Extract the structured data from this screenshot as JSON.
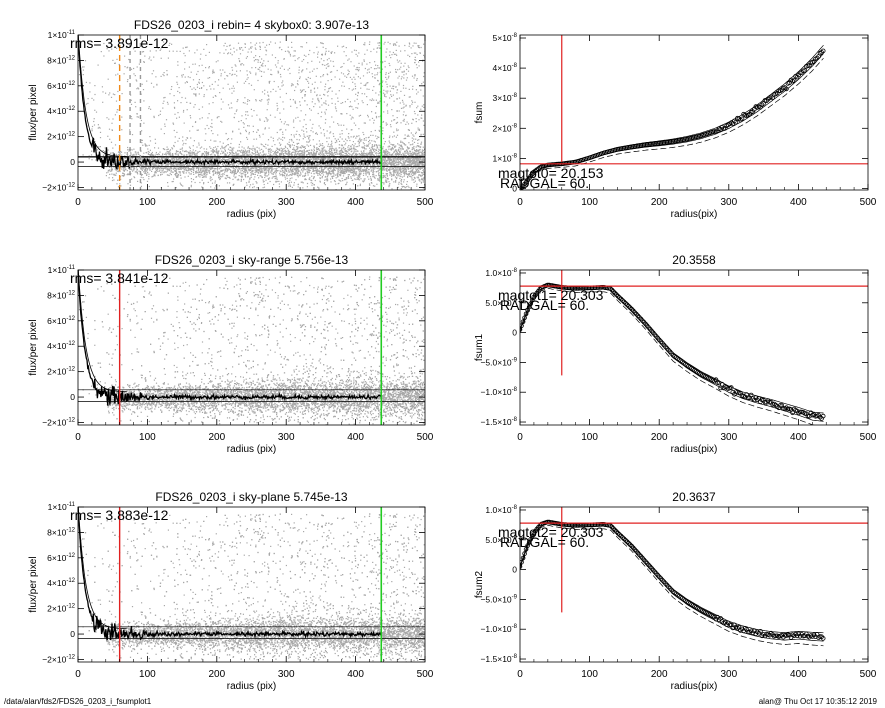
{
  "footer": {
    "path": "/data/alan/fds2/FDS26_0203_i_fsumplot1",
    "user_time": "alan@  Thu Oct 17 10:35:12 2019"
  },
  "colors": {
    "scatter": "#a8a8a8",
    "profile": "#000000",
    "red_line": "#e02020",
    "green_line": "#22cc22",
    "orange_dash": "#f08a1a",
    "gray_dash": "#9a9a9a"
  },
  "chart_data": [
    {
      "id": "p1",
      "type": "scatter",
      "title": "FDS26_0203_i rebin= 4    skybox0:  3.907e-13",
      "xlabel": "radius (pix)",
      "ylabel": "flux/per pixel",
      "xlim": [
        0,
        500
      ],
      "ylim": [
        -2.2e-12,
        1e-11
      ],
      "xticks": [
        "0",
        "100",
        "200",
        "300",
        "400",
        "500"
      ],
      "yticks": [
        {
          "v": 1e-11,
          "label": "1×10",
          "exp": "-11"
        },
        {
          "v": 8e-12,
          "label": "8×10",
          "exp": "-12"
        },
        {
          "v": 6e-12,
          "label": "6×10",
          "exp": "-12"
        },
        {
          "v": 4e-12,
          "label": "4×10",
          "exp": "-12"
        },
        {
          "v": 2e-12,
          "label": "2×10",
          "exp": "-12"
        },
        {
          "v": 0,
          "label": "0",
          "exp": ""
        },
        {
          "v": -2e-12,
          "label": "−2×10",
          "exp": "-12"
        }
      ],
      "annotation": "rms= 3.891e-12",
      "vlines": [
        {
          "x": 437,
          "color": "green",
          "style": "solid"
        },
        {
          "x": 60,
          "color": "orange",
          "style": "dashed"
        },
        {
          "x": 75,
          "color": "gray",
          "style": "dashed"
        },
        {
          "x": 90,
          "color": "gray",
          "style": "dashed"
        }
      ],
      "hlines": [
        3.9e-13,
        4.5e-13,
        -3.5e-13
      ]
    },
    {
      "id": "p2",
      "type": "line",
      "title": "",
      "xlabel": "radius(pix)",
      "ylabel": "fsum",
      "xlim": [
        0,
        500
      ],
      "ylim": [
        -5e-10,
        5.1e-08
      ],
      "xticks": [
        "0",
        "100",
        "200",
        "300",
        "400",
        "500"
      ],
      "yticks": [
        {
          "v": 0,
          "label": "0",
          "exp": ""
        },
        {
          "v": 1e-08,
          "label": "1×10",
          "exp": "-8"
        },
        {
          "v": 2e-08,
          "label": "2×10",
          "exp": "-8"
        },
        {
          "v": 3e-08,
          "label": "3×10",
          "exp": "-8"
        },
        {
          "v": 4e-08,
          "label": "4×10",
          "exp": "-8"
        },
        {
          "v": 5e-08,
          "label": "5×10",
          "exp": "-8"
        }
      ],
      "annotation_lines": [
        "magtot0=  20.153",
        "RADGAL=    60."
      ],
      "vline_x": 60,
      "hline_y": 8.2e-09,
      "x": [
        0,
        10,
        20,
        30,
        40,
        50,
        60,
        80,
        100,
        120,
        140,
        160,
        180,
        200,
        220,
        240,
        260,
        280,
        300,
        320,
        340,
        360,
        380,
        400,
        420,
        437
      ],
      "y": [
        -5e-10,
        2.5e-09,
        5.5e-09,
        7.2e-09,
        7.8e-09,
        8e-09,
        8.2e-09,
        8.8e-09,
        1.02e-08,
        1.18e-08,
        1.3e-08,
        1.38e-08,
        1.45e-08,
        1.5e-08,
        1.56e-08,
        1.64e-08,
        1.75e-08,
        1.9e-08,
        2.1e-08,
        2.35e-08,
        2.65e-08,
        3e-08,
        3.35e-08,
        3.75e-08,
        4.2e-08,
        4.65e-08
      ]
    },
    {
      "id": "p3",
      "type": "scatter",
      "title": "FDS26_0203_i sky-range  5.756e-13",
      "xlabel": "radius (pix)",
      "ylabel": "flux/per pixel",
      "xlim": [
        0,
        500
      ],
      "ylim": [
        -2.2e-12,
        1e-11
      ],
      "xticks": [
        "0",
        "100",
        "200",
        "300",
        "400",
        "500"
      ],
      "yticks": [
        {
          "v": 1e-11,
          "label": "1×10",
          "exp": "-11"
        },
        {
          "v": 8e-12,
          "label": "8×10",
          "exp": "-12"
        },
        {
          "v": 6e-12,
          "label": "6×10",
          "exp": "-12"
        },
        {
          "v": 4e-12,
          "label": "4×10",
          "exp": "-12"
        },
        {
          "v": 2e-12,
          "label": "2×10",
          "exp": "-12"
        },
        {
          "v": 0,
          "label": "0",
          "exp": ""
        },
        {
          "v": -2e-12,
          "label": "−2×10",
          "exp": "-12"
        }
      ],
      "annotation": "rms= 3.841e-12",
      "vlines": [
        {
          "x": 437,
          "color": "green",
          "style": "solid"
        },
        {
          "x": 60,
          "color": "red",
          "style": "solid"
        }
      ],
      "hlines": [
        5.7e-13,
        -3.5e-13
      ]
    },
    {
      "id": "p4",
      "type": "line",
      "title": "20.3558",
      "xlabel": "radius(pix)",
      "ylabel": "fsum1",
      "xlim": [
        0,
        500
      ],
      "ylim": [
        -1.55e-08,
        1.05e-08
      ],
      "xticks": [
        "0",
        "100",
        "200",
        "300",
        "400",
        "500"
      ],
      "yticks": [
        {
          "v": 1e-08,
          "label": "1.0×10",
          "exp": "-8"
        },
        {
          "v": 5e-09,
          "label": "5.0×10",
          "exp": "-9"
        },
        {
          "v": 0,
          "label": "0",
          "exp": ""
        },
        {
          "v": -5e-09,
          "label": "−5.0×10",
          "exp": "-9"
        },
        {
          "v": -1e-08,
          "label": "−1.0×10",
          "exp": "-8"
        },
        {
          "v": -1.5e-08,
          "label": "−1.5×10",
          "exp": "-8"
        }
      ],
      "annotation_lines": [
        "magtot1=  20.303",
        "RADGAL=    60."
      ],
      "vline_x": 60,
      "hline_y": 7.8e-09,
      "x": [
        0,
        10,
        20,
        30,
        40,
        50,
        60,
        80,
        100,
        120,
        130,
        140,
        160,
        180,
        200,
        220,
        240,
        260,
        280,
        300,
        320,
        340,
        360,
        380,
        400,
        420,
        437
      ],
      "y": [
        5e-10,
        3.5e-09,
        6e-09,
        7.5e-09,
        8e-09,
        7.8e-09,
        7.6e-09,
        7.4e-09,
        7.5e-09,
        7.6e-09,
        7.4e-09,
        6.2e-09,
        4e-09,
        1.5e-09,
        -1.2e-09,
        -3.8e-09,
        -5.5e-09,
        -7e-09,
        -8.2e-09,
        -9.5e-09,
        -1.05e-08,
        -1.12e-08,
        -1.18e-08,
        -1.25e-08,
        -1.32e-08,
        -1.4e-08,
        -1.42e-08
      ]
    },
    {
      "id": "p5",
      "type": "scatter",
      "title": "FDS26_0203_i sky-plane  5.745e-13",
      "xlabel": "radius (pix)",
      "ylabel": "flux/per pixel",
      "xlim": [
        0,
        500
      ],
      "ylim": [
        -2.2e-12,
        1e-11
      ],
      "xticks": [
        "0",
        "100",
        "200",
        "300",
        "400",
        "500"
      ],
      "yticks": [
        {
          "v": 1e-11,
          "label": "1×10",
          "exp": "-11"
        },
        {
          "v": 8e-12,
          "label": "8×10",
          "exp": "-12"
        },
        {
          "v": 6e-12,
          "label": "6×10",
          "exp": "-12"
        },
        {
          "v": 4e-12,
          "label": "4×10",
          "exp": "-12"
        },
        {
          "v": 2e-12,
          "label": "2×10",
          "exp": "-12"
        },
        {
          "v": 0,
          "label": "0",
          "exp": ""
        },
        {
          "v": -2e-12,
          "label": "−2×10",
          "exp": "-12"
        }
      ],
      "annotation": "rms= 3.883e-12",
      "vlines": [
        {
          "x": 437,
          "color": "green",
          "style": "solid"
        },
        {
          "x": 60,
          "color": "red",
          "style": "solid"
        }
      ],
      "hlines": [
        5.7e-13,
        -3.5e-13
      ]
    },
    {
      "id": "p6",
      "type": "line",
      "title": "20.3637",
      "xlabel": "radius(pix)",
      "ylabel": "fsum2",
      "xlim": [
        0,
        500
      ],
      "ylim": [
        -1.55e-08,
        1.05e-08
      ],
      "xticks": [
        "0",
        "100",
        "200",
        "300",
        "400",
        "500"
      ],
      "yticks": [
        {
          "v": 1e-08,
          "label": "1.0×10",
          "exp": "-8"
        },
        {
          "v": 5e-09,
          "label": "5.0×10",
          "exp": "-9"
        },
        {
          "v": 0,
          "label": "0",
          "exp": ""
        },
        {
          "v": -5e-09,
          "label": "−5.0×10",
          "exp": "-9"
        },
        {
          "v": -1e-08,
          "label": "−1.0×10",
          "exp": "-8"
        },
        {
          "v": -1.5e-08,
          "label": "−1.5×10",
          "exp": "-8"
        }
      ],
      "annotation_lines": [
        "magtot2=  20.303",
        "RADGAL=    60."
      ],
      "vline_x": 60,
      "hline_y": 7.8e-09,
      "x": [
        0,
        10,
        20,
        30,
        40,
        50,
        60,
        80,
        100,
        120,
        130,
        140,
        160,
        180,
        200,
        220,
        240,
        260,
        280,
        300,
        320,
        340,
        360,
        380,
        400,
        420,
        437
      ],
      "y": [
        5e-10,
        3.8e-09,
        6.2e-09,
        7.6e-09,
        8e-09,
        7.8e-09,
        7.6e-09,
        7.4e-09,
        7.5e-09,
        7.6e-09,
        7.4e-09,
        6.2e-09,
        4e-09,
        1.4e-09,
        -1.2e-09,
        -3.7e-09,
        -5.4e-09,
        -6.8e-09,
        -8e-09,
        -9.2e-09,
        -1e-08,
        -1.06e-08,
        -1.1e-08,
        -1.12e-08,
        -1.1e-08,
        -1.12e-08,
        -1.13e-08
      ]
    }
  ]
}
